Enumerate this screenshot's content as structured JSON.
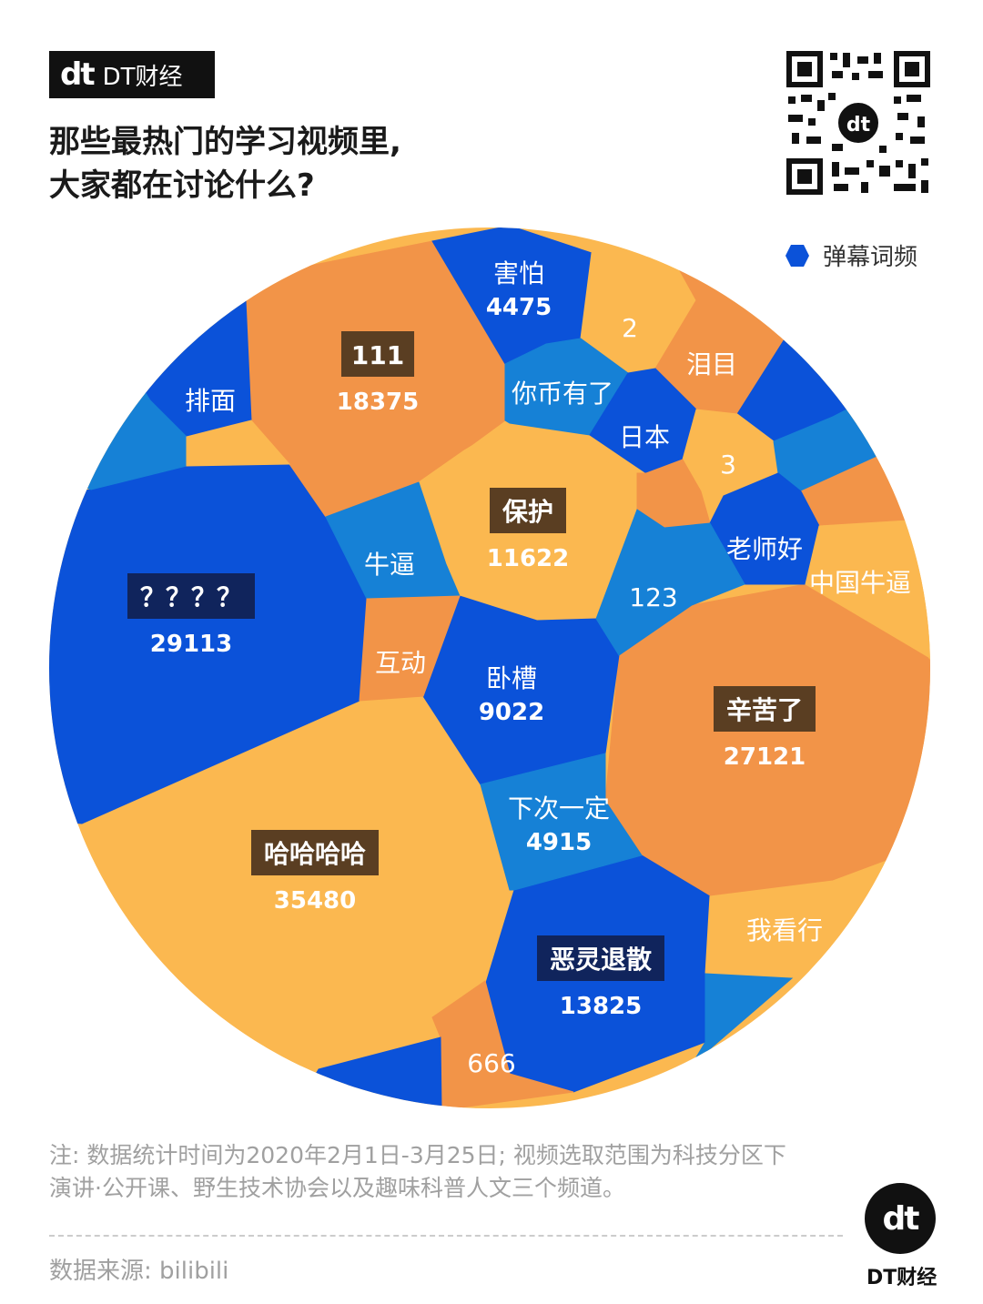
{
  "brand": {
    "mark": "dt",
    "name": "DT财经"
  },
  "title": {
    "line1": "那些最热门的学习视频里,",
    "line2": "大家都在讨论什么?"
  },
  "legend": {
    "label": "弹幕词频",
    "color": "#0b52d9"
  },
  "colors": {
    "blue": "#0b52d9",
    "mid_blue": "#1681d6",
    "orange": "#f29448",
    "yellow": "#fbb850",
    "label_dark": "#5a3e22",
    "label_navy": "#10245c"
  },
  "chart_data": {
    "type": "voronoi-treemap",
    "title": "那些最热门的学习视频里, 大家都在讨论什么?",
    "measure": "弹幕词频",
    "items": [
      {
        "word": "哈哈哈哈",
        "count": 35480
      },
      {
        "word": "？？？？",
        "count": 29113
      },
      {
        "word": "辛苦了",
        "count": 27121
      },
      {
        "word": "111",
        "count": 18375
      },
      {
        "word": "恶灵退散",
        "count": 13825
      },
      {
        "word": "保护",
        "count": 11622
      },
      {
        "word": "卧槽",
        "count": 9022
      },
      {
        "word": "下次一定",
        "count": 4915
      },
      {
        "word": "害怕",
        "count": 4475
      },
      {
        "word": "排面",
        "count": null
      },
      {
        "word": "2",
        "count": null
      },
      {
        "word": "泪目",
        "count": null
      },
      {
        "word": "你币有了",
        "count": null
      },
      {
        "word": "日本",
        "count": null
      },
      {
        "word": "3",
        "count": null
      },
      {
        "word": "牛逼",
        "count": null
      },
      {
        "word": "老师好",
        "count": null
      },
      {
        "word": "中国牛逼",
        "count": null
      },
      {
        "word": "123",
        "count": null
      },
      {
        "word": "互动",
        "count": null
      },
      {
        "word": "我看行",
        "count": null
      },
      {
        "word": "666",
        "count": null
      }
    ]
  },
  "footer": {
    "note_line1": "注: 数据统计时间为2020年2月1日-3月25日; 视频选取范围为科技分区下",
    "note_line2": "演讲·公开课、野生技术协会以及趣味科普人文三个频道。",
    "source": "数据来源: bilibili",
    "logo_mark": "dt",
    "logo_name": "DT财经"
  }
}
